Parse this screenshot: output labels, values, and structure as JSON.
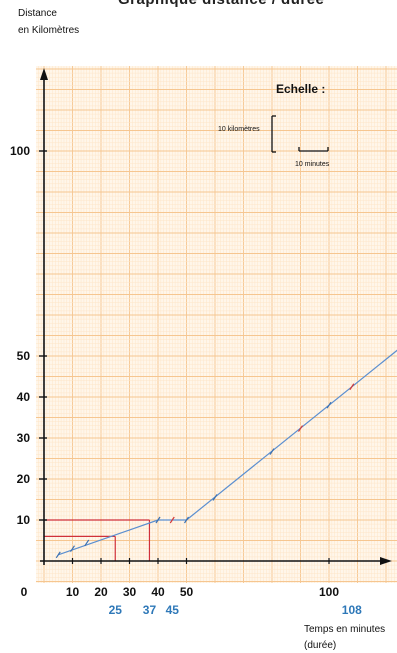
{
  "header": {
    "cut_title": "Graphique distance / durée",
    "ylabel_line1": "Distance",
    "ylabel_line2": "en Kilomètres"
  },
  "footer": {
    "xlabel_line1": "Temps en minutes",
    "xlabel_line2": "(durée)"
  },
  "scale_box": {
    "title": "Echelle :",
    "km_label": "10 kilomètres",
    "min_label": "10 minutes"
  },
  "colors": {
    "grid_minor": "#fde5c8",
    "grid_major": "#f6c690",
    "background": "#fff6ea",
    "line": "#5b8fd0",
    "tick_marks": "#3a6fb0",
    "red_marks": "#d33a3a",
    "reading_lines": "#d0313a",
    "highlight_labels": "#2e78b8",
    "axis": "#111111"
  },
  "chart_data": {
    "type": "line",
    "title": "",
    "xlabel": "Temps en minutes (durée)",
    "ylabel": "Distance en Kilomètres",
    "xlim": [
      0,
      125
    ],
    "ylim": [
      0,
      115
    ],
    "grid": true,
    "x_ticks": [
      "0",
      "10",
      "20",
      "30",
      "40",
      "50",
      "100"
    ],
    "x_tick_values": [
      0,
      10,
      20,
      30,
      40,
      50,
      100
    ],
    "x_highlight_ticks": [
      "25",
      "37",
      "45",
      "108"
    ],
    "x_highlight_values": [
      25,
      37,
      45,
      108
    ],
    "y_ticks": [
      "10",
      "20",
      "30",
      "40",
      "50",
      "100"
    ],
    "y_tick_values": [
      10,
      20,
      30,
      40,
      50,
      100
    ],
    "series": [
      {
        "x": [
          5,
          40,
          50,
          125
        ],
        "y": [
          1.5,
          10,
          10,
          52
        ]
      }
    ],
    "blue_markers": [
      [
        5,
        1.5
      ],
      [
        10,
        3
      ],
      [
        15,
        4.4
      ],
      [
        40,
        10
      ],
      [
        50,
        10
      ],
      [
        60,
        15.5
      ],
      [
        80,
        26.7
      ],
      [
        100,
        38
      ]
    ],
    "red_markers": [
      [
        45,
        10
      ],
      [
        90,
        32.3
      ],
      [
        108,
        42.5
      ]
    ],
    "reading_lines": [
      {
        "x": 25,
        "y": 6
      },
      {
        "x": 37,
        "y": 10
      }
    ]
  }
}
